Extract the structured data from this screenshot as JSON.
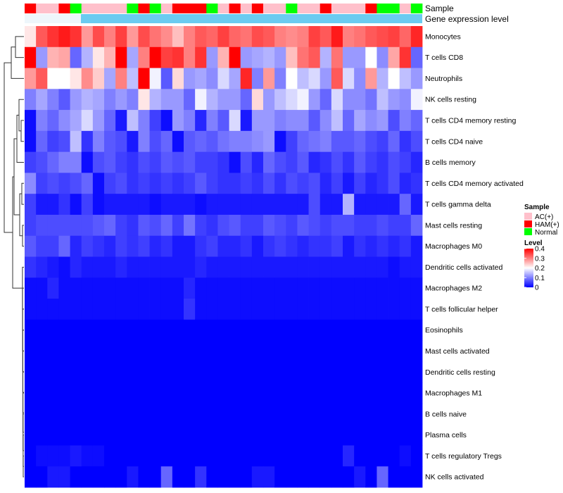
{
  "chart_data": {
    "type": "heatmap",
    "annotation_labels": {
      "sample": "Sample",
      "expression": "Gene expression level"
    },
    "rows": [
      "Monocytes",
      "T cells CD8",
      "Neutrophils",
      "NK cells resting",
      "T cells CD4 memory resting",
      "T cells CD4 naive",
      "B cells memory",
      "T cells CD4 memory activated",
      "T cells gamma delta",
      "Mast cells resting",
      "Macrophages M0",
      "Dendritic cells activated",
      "Macrophages M2",
      "T cells follicular helper",
      "Eosinophils",
      "Mast cells activated",
      "Dendritic cells resting",
      "Macrophages M1",
      "B cells naive",
      "Plasma cells",
      "T cells regulatory  Tregs",
      "NK cells activated"
    ],
    "sample_groups": [
      "HAM",
      "AC",
      "AC",
      "HAM",
      "Normal",
      "AC",
      "AC",
      "AC",
      "AC",
      "Normal",
      "HAM",
      "Normal",
      "AC",
      "HAM",
      "HAM",
      "HAM",
      "Normal",
      "AC",
      "HAM",
      "AC",
      "HAM",
      "AC",
      "AC",
      "Normal",
      "AC",
      "AC",
      "HAM",
      "AC",
      "AC",
      "AC",
      "HAM",
      "Normal",
      "Normal",
      "AC",
      "Normal"
    ],
    "values": [
      [
        0.22,
        0.33,
        0.36,
        0.38,
        0.36,
        0.28,
        0.34,
        0.3,
        0.35,
        0.28,
        0.34,
        0.31,
        0.29,
        0.25,
        0.3,
        0.33,
        0.32,
        0.35,
        0.32,
        0.31,
        0.34,
        0.33,
        0.3,
        0.29,
        0.3,
        0.35,
        0.33,
        0.38,
        0.3,
        0.31,
        0.33,
        0.34,
        0.35,
        0.32,
        0.37
      ],
      [
        0.4,
        0.12,
        0.26,
        0.27,
        0.08,
        0.14,
        0.22,
        0.26,
        0.4,
        0.13,
        0.3,
        0.4,
        0.35,
        0.36,
        0.3,
        0.36,
        0.12,
        0.26,
        0.4,
        0.12,
        0.13,
        0.14,
        0.12,
        0.25,
        0.31,
        0.33,
        0.14,
        0.31,
        0.12,
        0.12,
        0.2,
        0.11,
        0.27,
        0.36,
        0.08
      ],
      [
        0.28,
        0.33,
        0.2,
        0.2,
        0.22,
        0.29,
        0.24,
        0.13,
        0.3,
        0.15,
        0.4,
        0.19,
        0.07,
        0.23,
        0.12,
        0.13,
        0.11,
        0.17,
        0.13,
        0.37,
        0.1,
        0.28,
        0.1,
        0.2,
        0.15,
        0.17,
        0.12,
        0.33,
        0.17,
        0.11,
        0.28,
        0.14,
        0.2,
        0.15,
        0.12
      ],
      [
        0.1,
        0.13,
        0.1,
        0.07,
        0.12,
        0.14,
        0.13,
        0.1,
        0.12,
        0.1,
        0.22,
        0.14,
        0.12,
        0.12,
        0.08,
        0.19,
        0.14,
        0.12,
        0.12,
        0.08,
        0.23,
        0.12,
        0.15,
        0.17,
        0.19,
        0.12,
        0.08,
        0.17,
        0.11,
        0.11,
        0.09,
        0.15,
        0.12,
        0.11,
        0.19
      ],
      [
        0.01,
        0.1,
        0.08,
        0.11,
        0.13,
        0.17,
        0.12,
        0.08,
        0.02,
        0.15,
        0.1,
        0.05,
        0.01,
        0.12,
        0.1,
        0.03,
        0.1,
        0.07,
        0.17,
        0.02,
        0.12,
        0.12,
        0.1,
        0.11,
        0.11,
        0.07,
        0.11,
        0.15,
        0.08,
        0.13,
        0.11,
        0.12,
        0.06,
        0.1,
        0.08
      ],
      [
        0.01,
        0.08,
        0.05,
        0.06,
        0.15,
        0.04,
        0.1,
        0.07,
        0.06,
        0.02,
        0.1,
        0.06,
        0.08,
        0.01,
        0.07,
        0.08,
        0.07,
        0.09,
        0.1,
        0.1,
        0.11,
        0.12,
        0.01,
        0.05,
        0.08,
        0.09,
        0.1,
        0.07,
        0.07,
        0.08,
        0.06,
        0.05,
        0.08,
        0.04,
        0.06
      ],
      [
        0.05,
        0.06,
        0.08,
        0.1,
        0.1,
        0.01,
        0.06,
        0.07,
        0.05,
        0.04,
        0.06,
        0.05,
        0.07,
        0.06,
        0.07,
        0.05,
        0.05,
        0.04,
        0.01,
        0.06,
        0.03,
        0.08,
        0.06,
        0.05,
        0.07,
        0.03,
        0.04,
        0.06,
        0.04,
        0.07,
        0.05,
        0.04,
        0.06,
        0.05,
        0.03
      ],
      [
        0.11,
        0.05,
        0.06,
        0.05,
        0.06,
        0.08,
        0.01,
        0.05,
        0.06,
        0.04,
        0.05,
        0.04,
        0.05,
        0.04,
        0.05,
        0.07,
        0.05,
        0.04,
        0.04,
        0.05,
        0.04,
        0.06,
        0.04,
        0.06,
        0.05,
        0.06,
        0.03,
        0.05,
        0.02,
        0.05,
        0.03,
        0.04,
        0.06,
        0.03,
        0.04
      ],
      [
        0.05,
        0.02,
        0.02,
        0.04,
        0.01,
        0.05,
        0.01,
        0.02,
        0.02,
        0.02,
        0.02,
        0.01,
        0.02,
        0.02,
        0.02,
        0.01,
        0.02,
        0.02,
        0.02,
        0.02,
        0.02,
        0.02,
        0.02,
        0.02,
        0.02,
        0.06,
        0.02,
        0.02,
        0.14,
        0.02,
        0.02,
        0.02,
        0.02,
        0.08,
        0.02
      ],
      [
        0.05,
        0.06,
        0.06,
        0.06,
        0.06,
        0.06,
        0.07,
        0.08,
        0.05,
        0.04,
        0.07,
        0.06,
        0.08,
        0.05,
        0.09,
        0.05,
        0.04,
        0.06,
        0.07,
        0.05,
        0.05,
        0.07,
        0.06,
        0.05,
        0.07,
        0.06,
        0.05,
        0.06,
        0.06,
        0.05,
        0.05,
        0.06,
        0.05,
        0.05,
        0.08
      ],
      [
        0.07,
        0.05,
        0.05,
        0.08,
        0.03,
        0.05,
        0.04,
        0.03,
        0.05,
        0.04,
        0.05,
        0.03,
        0.04,
        0.02,
        0.02,
        0.04,
        0.05,
        0.03,
        0.03,
        0.04,
        0.02,
        0.04,
        0.05,
        0.04,
        0.03,
        0.04,
        0.04,
        0.05,
        0.02,
        0.04,
        0.03,
        0.04,
        0.03,
        0.04,
        0.02
      ],
      [
        0.04,
        0.03,
        0.02,
        0.01,
        0.03,
        0.02,
        0.02,
        0.02,
        0.03,
        0.02,
        0.02,
        0.02,
        0.02,
        0.02,
        0.02,
        0.03,
        0.02,
        0.02,
        0.02,
        0.02,
        0.02,
        0.02,
        0.02,
        0.02,
        0.02,
        0.02,
        0.02,
        0.02,
        0.02,
        0.02,
        0.02,
        0.02,
        0.01,
        0.02,
        0.02
      ],
      [
        0.01,
        0.01,
        0.03,
        0.01,
        0.01,
        0.01,
        0.01,
        0.01,
        0.01,
        0.01,
        0.01,
        0.01,
        0.01,
        0.01,
        0.03,
        0.01,
        0.01,
        0.01,
        0.01,
        0.01,
        0.01,
        0.01,
        0.01,
        0.01,
        0.01,
        0.01,
        0.01,
        0.01,
        0.01,
        0.01,
        0.01,
        0.01,
        0.01,
        0.01,
        0.01
      ],
      [
        0.01,
        0.01,
        0.01,
        0.01,
        0.01,
        0.01,
        0.01,
        0.01,
        0.01,
        0.01,
        0.01,
        0.01,
        0.01,
        0.01,
        0.04,
        0.01,
        0.01,
        0.01,
        0.01,
        0.01,
        0.01,
        0.01,
        0.01,
        0.01,
        0.01,
        0.01,
        0.01,
        0.01,
        0.01,
        0.01,
        0.01,
        0.01,
        0.01,
        0.01,
        0.01
      ],
      [
        0.0,
        0.0,
        0.0,
        0.0,
        0.0,
        0.0,
        0.0,
        0.0,
        0.0,
        0.0,
        0.0,
        0.0,
        0.0,
        0.0,
        0.0,
        0.0,
        0.0,
        0.0,
        0.0,
        0.0,
        0.0,
        0.0,
        0.0,
        0.0,
        0.0,
        0.0,
        0.0,
        0.0,
        0.0,
        0.0,
        0.0,
        0.0,
        0.0,
        0.0,
        0.0
      ],
      [
        0.0,
        0.0,
        0.0,
        0.0,
        0.0,
        0.0,
        0.0,
        0.0,
        0.0,
        0.0,
        0.0,
        0.0,
        0.0,
        0.0,
        0.0,
        0.0,
        0.0,
        0.0,
        0.0,
        0.0,
        0.0,
        0.0,
        0.0,
        0.0,
        0.0,
        0.0,
        0.0,
        0.0,
        0.0,
        0.0,
        0.0,
        0.0,
        0.0,
        0.0,
        0.0
      ],
      [
        0.0,
        0.0,
        0.0,
        0.0,
        0.0,
        0.0,
        0.0,
        0.0,
        0.0,
        0.0,
        0.0,
        0.0,
        0.0,
        0.0,
        0.0,
        0.0,
        0.0,
        0.0,
        0.0,
        0.0,
        0.0,
        0.0,
        0.0,
        0.0,
        0.0,
        0.0,
        0.0,
        0.0,
        0.0,
        0.0,
        0.0,
        0.0,
        0.0,
        0.0,
        0.0
      ],
      [
        0.0,
        0.0,
        0.0,
        0.0,
        0.0,
        0.0,
        0.0,
        0.0,
        0.0,
        0.0,
        0.0,
        0.0,
        0.0,
        0.0,
        0.0,
        0.0,
        0.0,
        0.0,
        0.0,
        0.0,
        0.0,
        0.0,
        0.0,
        0.0,
        0.0,
        0.0,
        0.0,
        0.0,
        0.0,
        0.0,
        0.0,
        0.0,
        0.0,
        0.0,
        0.0
      ],
      [
        0.0,
        0.0,
        0.0,
        0.0,
        0.0,
        0.0,
        0.0,
        0.0,
        0.0,
        0.0,
        0.0,
        0.0,
        0.0,
        0.0,
        0.0,
        0.0,
        0.0,
        0.0,
        0.0,
        0.0,
        0.0,
        0.0,
        0.0,
        0.0,
        0.0,
        0.0,
        0.0,
        0.0,
        0.0,
        0.0,
        0.0,
        0.0,
        0.0,
        0.0,
        0.0
      ],
      [
        0.0,
        0.0,
        0.0,
        0.0,
        0.0,
        0.0,
        0.0,
        0.0,
        0.0,
        0.0,
        0.0,
        0.0,
        0.0,
        0.0,
        0.0,
        0.0,
        0.0,
        0.0,
        0.0,
        0.0,
        0.0,
        0.0,
        0.0,
        0.0,
        0.0,
        0.0,
        0.0,
        0.0,
        0.0,
        0.0,
        0.0,
        0.0,
        0.0,
        0.0,
        0.0
      ],
      [
        0.0,
        0.01,
        0.01,
        0.01,
        0.02,
        0.01,
        0.01,
        0.0,
        0.0,
        0.0,
        0.0,
        0.0,
        0.0,
        0.0,
        0.0,
        0.0,
        0.0,
        0.0,
        0.0,
        0.0,
        0.0,
        0.0,
        0.0,
        0.0,
        0.0,
        0.0,
        0.0,
        0.0,
        0.03,
        0.0,
        0.0,
        0.0,
        0.0,
        0.01,
        0.0
      ],
      [
        0.0,
        0.0,
        0.02,
        0.02,
        0.0,
        0.0,
        0.0,
        0.0,
        0.0,
        0.02,
        0.0,
        0.0,
        0.08,
        0.0,
        0.0,
        0.04,
        0.0,
        0.0,
        0.0,
        0.0,
        0.02,
        0.02,
        0.0,
        0.0,
        0.0,
        0.0,
        0.0,
        0.0,
        0.0,
        0.02,
        0.0,
        0.08,
        0.0,
        0.0,
        0.0
      ]
    ],
    "color_scale": {
      "min": 0,
      "mid": 0.2,
      "max": 0.4,
      "low_color": "#0000ff",
      "mid_color": "#ffffff",
      "high_color": "#ff0000"
    },
    "legend": {
      "sample_title": "Sample",
      "sample_entries": [
        {
          "label": "AC(+)",
          "color": "#ffc0cb",
          "key": "AC"
        },
        {
          "label": "HAM(+)",
          "color": "#ff0000",
          "key": "HAM"
        },
        {
          "label": "Normal",
          "color": "#00ff00",
          "key": "Normal"
        }
      ],
      "level_title": "Level",
      "level_ticks": [
        "0.4",
        "0.3",
        "0.2",
        "0.1",
        "0"
      ],
      "level_tick_values": [
        0.4,
        0.3,
        0.2,
        0.1,
        0
      ]
    },
    "expression_bar_color": "#6bcbf0"
  }
}
